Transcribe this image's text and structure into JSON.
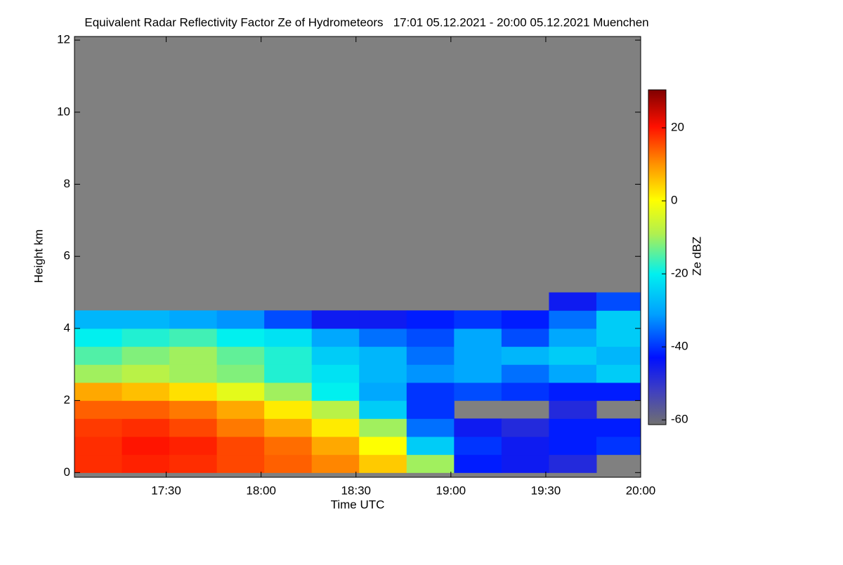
{
  "chart_data": {
    "type": "heatmap",
    "title": "Equivalent Radar Reflectivity Factor Ze of Hydrometeors   17:01 05.12.2021 - 20:00 05.12.2021 Muenchen",
    "x_label": "Time UTC",
    "y_label": "Height km",
    "colorbar_label": "Ze dBZ",
    "x_edges": [
      1021,
      1036,
      1051,
      1066,
      1081,
      1096,
      1111,
      1126,
      1141,
      1156,
      1171,
      1186,
      1200
    ],
    "y_edges": [
      0,
      0.5,
      1,
      1.5,
      2,
      2.5,
      3,
      3.5,
      4,
      4.5,
      5
    ],
    "z": [
      [
        18,
        19,
        18,
        16,
        14,
        11,
        5,
        -10,
        -42,
        -45,
        -48,
        null
      ],
      [
        18,
        20,
        19,
        16,
        13,
        8,
        0,
        -25,
        -40,
        -45,
        -42,
        -40
      ],
      [
        17,
        18,
        16,
        12,
        8,
        2,
        -10,
        -35,
        -45,
        -48,
        -42,
        -42
      ],
      [
        14,
        14,
        12,
        8,
        2,
        -8,
        -25,
        -40,
        null,
        null,
        -48,
        null
      ],
      [
        8,
        6,
        3,
        -3,
        -10,
        -20,
        -30,
        -40,
        -38,
        -40,
        -42,
        -42
      ],
      [
        -10,
        -8,
        -10,
        -12,
        -18,
        -22,
        -28,
        -32,
        -30,
        -35,
        -30,
        -25
      ],
      [
        -15,
        -12,
        -10,
        -14,
        -18,
        -25,
        -28,
        -35,
        -30,
        -28,
        -25,
        -28
      ],
      [
        -20,
        -18,
        -16,
        -20,
        -22,
        -30,
        -35,
        -38,
        -30,
        -38,
        -30,
        -25
      ],
      [
        -28,
        -28,
        -30,
        -32,
        -38,
        -45,
        -45,
        -42,
        -40,
        -42,
        -35,
        -25
      ],
      [
        null,
        null,
        null,
        null,
        null,
        null,
        null,
        null,
        null,
        null,
        -45,
        -38
      ]
    ],
    "xlim": [
      1021,
      1200
    ],
    "ylim": [
      -0.13,
      12.1
    ],
    "zlim": [
      -61.3,
      30.4
    ],
    "xticks": [
      {
        "value": 1050,
        "label": "17:30"
      },
      {
        "value": 1080,
        "label": "18:00"
      },
      {
        "value": 1110,
        "label": "18:30"
      },
      {
        "value": 1140,
        "label": "19:00"
      },
      {
        "value": 1170,
        "label": "19:30"
      },
      {
        "value": 1200,
        "label": "20:00"
      }
    ],
    "yticks": [
      0,
      2,
      4,
      6,
      8,
      10,
      12
    ],
    "zticks": [
      -60,
      -40,
      -20,
      0,
      20
    ],
    "background_color": "#808080"
  }
}
